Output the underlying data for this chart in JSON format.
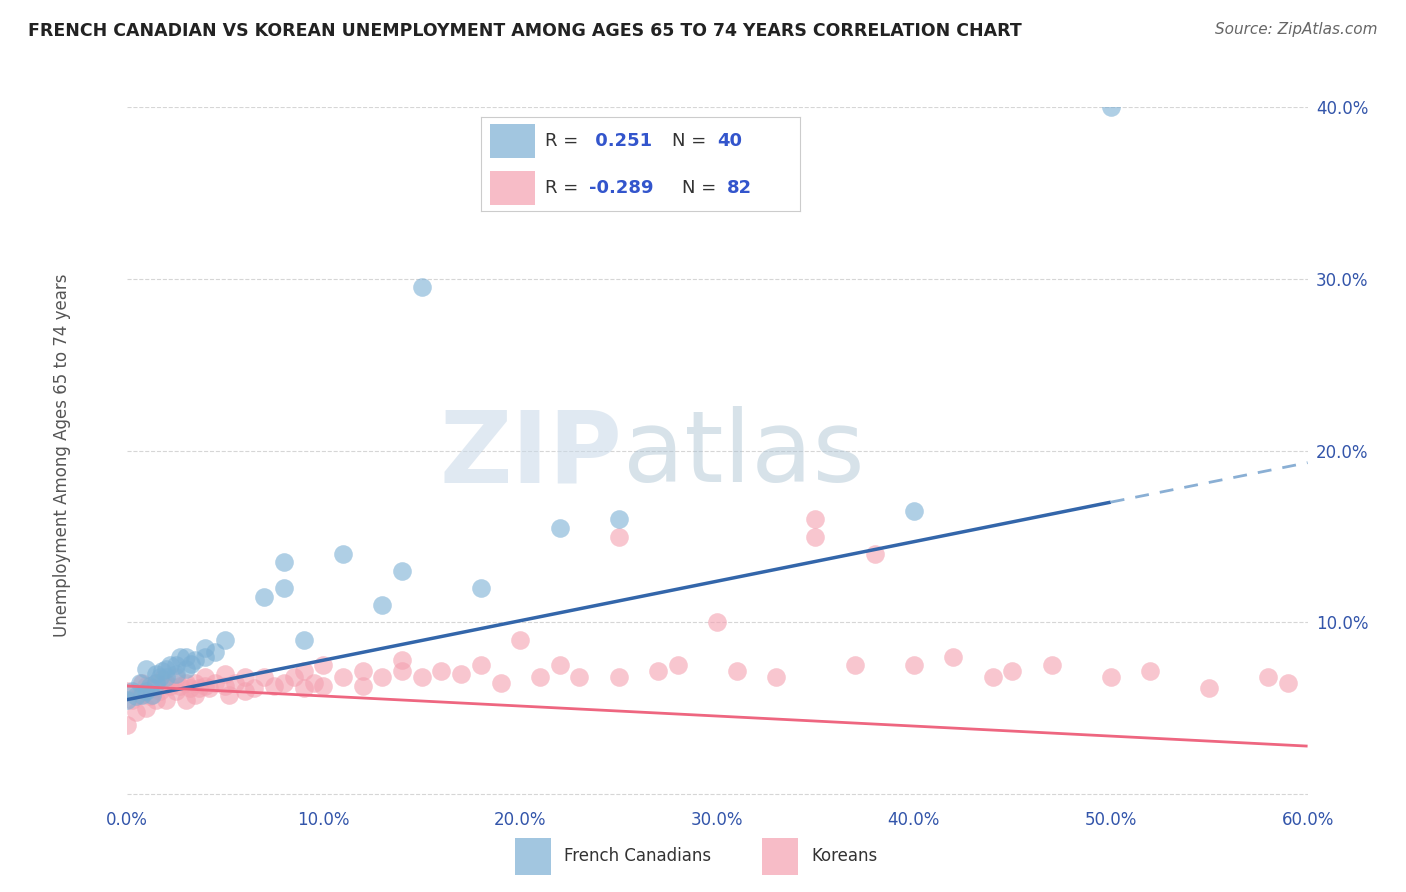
{
  "title": "FRENCH CANADIAN VS KOREAN UNEMPLOYMENT AMONG AGES 65 TO 74 YEARS CORRELATION CHART",
  "source": "Source: ZipAtlas.com",
  "ylabel": "Unemployment Among Ages 65 to 74 years",
  "xlim": [
    0.0,
    0.6
  ],
  "ylim": [
    -0.005,
    0.4
  ],
  "xticks": [
    0.0,
    0.1,
    0.2,
    0.3,
    0.4,
    0.5,
    0.6
  ],
  "yticks": [
    0.0,
    0.1,
    0.2,
    0.3,
    0.4
  ],
  "xtick_labels": [
    "0.0%",
    "10.0%",
    "20.0%",
    "30.0%",
    "40.0%",
    "50.0%",
    "60.0%"
  ],
  "ytick_labels": [
    "",
    "10.0%",
    "20.0%",
    "30.0%",
    "40.0%"
  ],
  "watermark_zip": "ZIP",
  "watermark_atlas": "atlas",
  "color_blue": "#7BAFD4",
  "color_pink": "#F4A0B0",
  "trend_blue": "#3366AA",
  "trend_pink": "#EE6680",
  "trend_blue_dashed": "#8AAFD4",
  "fc_trend_x0": 0.0,
  "fc_trend_y0": 0.055,
  "fc_trend_x1": 0.5,
  "fc_trend_y1": 0.17,
  "fc_trend_dash_x0": 0.5,
  "fc_trend_dash_y0": 0.17,
  "fc_trend_dash_x1": 0.6,
  "fc_trend_dash_y1": 0.193,
  "kr_trend_x0": 0.0,
  "kr_trend_y0": 0.063,
  "kr_trend_x1": 0.6,
  "kr_trend_y1": 0.028,
  "fc_points_x": [
    0.0,
    0.003,
    0.005,
    0.007,
    0.008,
    0.01,
    0.01,
    0.012,
    0.013,
    0.015,
    0.015,
    0.017,
    0.018,
    0.02,
    0.02,
    0.022,
    0.025,
    0.025,
    0.027,
    0.03,
    0.03,
    0.033,
    0.035,
    0.04,
    0.04,
    0.045,
    0.05,
    0.07,
    0.08,
    0.08,
    0.09,
    0.11,
    0.13,
    0.14,
    0.15,
    0.18,
    0.22,
    0.25,
    0.4,
    0.5
  ],
  "fc_points_y": [
    0.055,
    0.06,
    0.057,
    0.065,
    0.058,
    0.06,
    0.073,
    0.063,
    0.058,
    0.065,
    0.07,
    0.068,
    0.072,
    0.068,
    0.073,
    0.075,
    0.07,
    0.075,
    0.08,
    0.073,
    0.08,
    0.076,
    0.078,
    0.08,
    0.085,
    0.083,
    0.09,
    0.115,
    0.12,
    0.135,
    0.09,
    0.14,
    0.11,
    0.13,
    0.295,
    0.12,
    0.155,
    0.16,
    0.165,
    0.4
  ],
  "kr_points_x": [
    0.0,
    0.0,
    0.003,
    0.005,
    0.007,
    0.008,
    0.01,
    0.01,
    0.012,
    0.013,
    0.015,
    0.015,
    0.017,
    0.018,
    0.02,
    0.02,
    0.022,
    0.025,
    0.025,
    0.027,
    0.03,
    0.03,
    0.032,
    0.035,
    0.035,
    0.037,
    0.04,
    0.04,
    0.042,
    0.045,
    0.05,
    0.05,
    0.052,
    0.055,
    0.06,
    0.06,
    0.065,
    0.07,
    0.075,
    0.08,
    0.085,
    0.09,
    0.09,
    0.095,
    0.1,
    0.1,
    0.11,
    0.12,
    0.12,
    0.13,
    0.14,
    0.14,
    0.15,
    0.16,
    0.17,
    0.18,
    0.19,
    0.2,
    0.21,
    0.22,
    0.23,
    0.25,
    0.25,
    0.27,
    0.28,
    0.3,
    0.31,
    0.33,
    0.35,
    0.35,
    0.37,
    0.38,
    0.4,
    0.42,
    0.44,
    0.45,
    0.47,
    0.5,
    0.52,
    0.55,
    0.58,
    0.59
  ],
  "kr_points_y": [
    0.04,
    0.06,
    0.055,
    0.048,
    0.058,
    0.065,
    0.05,
    0.063,
    0.057,
    0.062,
    0.055,
    0.065,
    0.06,
    0.067,
    0.055,
    0.065,
    0.063,
    0.06,
    0.068,
    0.063,
    0.055,
    0.065,
    0.062,
    0.058,
    0.065,
    0.062,
    0.063,
    0.068,
    0.062,
    0.065,
    0.063,
    0.07,
    0.058,
    0.065,
    0.06,
    0.068,
    0.062,
    0.068,
    0.063,
    0.065,
    0.068,
    0.062,
    0.072,
    0.065,
    0.063,
    0.075,
    0.068,
    0.063,
    0.072,
    0.068,
    0.072,
    0.078,
    0.068,
    0.072,
    0.07,
    0.075,
    0.065,
    0.09,
    0.068,
    0.075,
    0.068,
    0.15,
    0.068,
    0.072,
    0.075,
    0.1,
    0.072,
    0.068,
    0.16,
    0.15,
    0.075,
    0.14,
    0.075,
    0.08,
    0.068,
    0.072,
    0.075,
    0.068,
    0.072,
    0.062,
    0.068,
    0.065
  ]
}
